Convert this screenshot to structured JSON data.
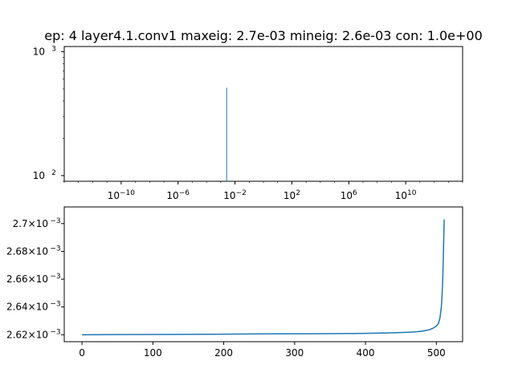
{
  "chart_data": [
    {
      "type": "bar",
      "title": "ep: 4 layer4.1.conv1 maxeig: 2.7e-03 mineig: 2.6e-03 con: 1.0e+00",
      "xscale": "log",
      "yscale": "log",
      "xlim": [
        1e-14,
        100000000000000.0
      ],
      "ylim": [
        90,
        1100
      ],
      "x_ticks": [
        {
          "base": "10",
          "exp": "−10",
          "value": 1e-10
        },
        {
          "base": "10",
          "exp": "−6",
          "value": 1e-06
        },
        {
          "base": "10",
          "exp": "−2",
          "value": 0.01
        },
        {
          "base": "10",
          "exp": "2",
          "value": 100.0
        },
        {
          "base": "10",
          "exp": "6",
          "value": 1000000.0
        },
        {
          "base": "10",
          "exp": "10",
          "value": 10000000000.0
        }
      ],
      "y_ticks": [
        {
          "base": "10",
          "exp": "2",
          "value": 100
        },
        {
          "base": "10",
          "exp": "3",
          "value": 1000
        }
      ],
      "bars": [
        {
          "x": 0.0026,
          "value": 512
        }
      ],
      "color": "#1f77b4",
      "grid": false,
      "legend": false
    },
    {
      "type": "line",
      "title": "",
      "xlim": [
        -25,
        537
      ],
      "ylim": [
        0.002615,
        0.002712
      ],
      "x_ticks": [
        {
          "label": "0",
          "value": 0
        },
        {
          "label": "100",
          "value": 100
        },
        {
          "label": "200",
          "value": 200
        },
        {
          "label": "300",
          "value": 300
        },
        {
          "label": "400",
          "value": 400
        },
        {
          "label": "500",
          "value": 500
        }
      ],
      "y_ticks": [
        {
          "label": "2.62×10",
          "exp": "−3",
          "value": 0.00262
        },
        {
          "label": "2.64×10",
          "exp": "−3",
          "value": 0.00264
        },
        {
          "label": "2.66×10",
          "exp": "−3",
          "value": 0.00266
        },
        {
          "label": "2.68×10",
          "exp": "−3",
          "value": 0.00268
        },
        {
          "label": "2.7×10",
          "exp": "−3",
          "value": 0.0027
        }
      ],
      "series": [
        {
          "x": [
            0,
            50,
            100,
            150,
            200,
            250,
            300,
            350,
            400,
            420,
            440,
            460,
            470,
            480,
            490,
            495,
            500,
            503,
            505,
            507,
            508,
            509,
            510,
            511
          ],
          "values": [
            0.00262,
            0.0026201,
            0.0026202,
            0.0026203,
            0.0026204,
            0.0026206,
            0.0026207,
            0.0026208,
            0.002621,
            0.0026212,
            0.0026214,
            0.0026218,
            0.0026221,
            0.0026226,
            0.0026236,
            0.0026246,
            0.0026262,
            0.0026282,
            0.002632,
            0.00264,
            0.002648,
            0.00266,
            0.00268,
            0.002703
          ]
        }
      ],
      "color": "#1f77b4",
      "grid": false,
      "legend": false
    }
  ]
}
